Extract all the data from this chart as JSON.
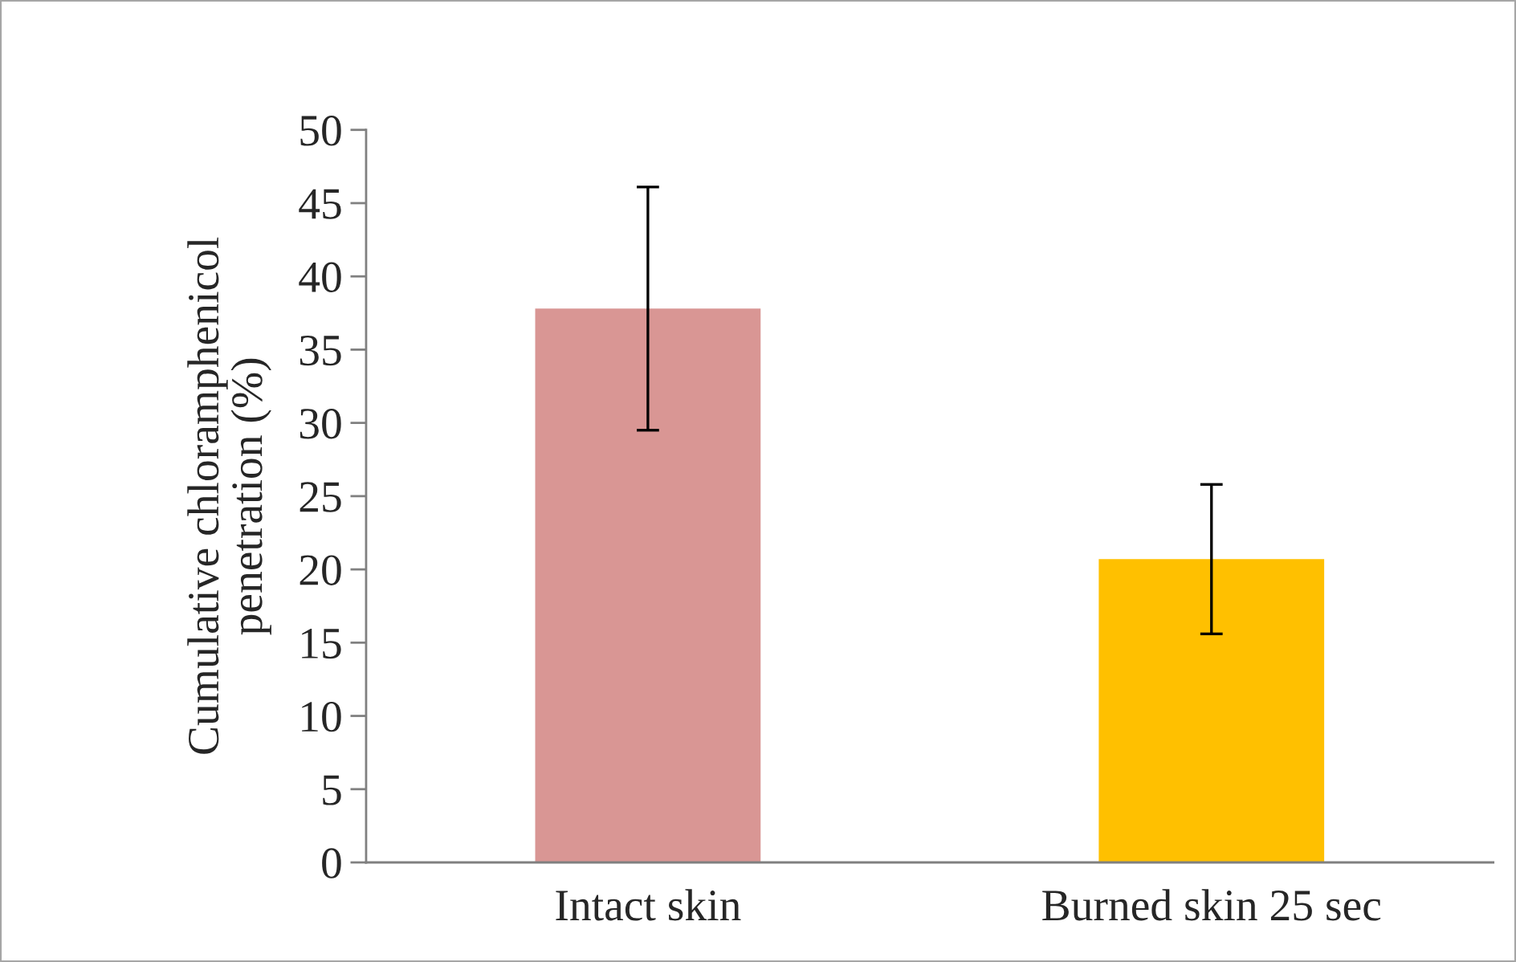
{
  "chart_data": {
    "type": "bar",
    "ylabel": "Cumulative chloramphenicol\npenetration (%)",
    "categories": [
      "Intact skin",
      "Burned skin 25 sec"
    ],
    "values": [
      37.8,
      20.7
    ],
    "errors": [
      8.3,
      5.1
    ],
    "colors": [
      "#d99694",
      "#ffc000"
    ],
    "ylim": [
      0,
      50
    ],
    "yticks": [
      0,
      5,
      10,
      15,
      20,
      25,
      30,
      35,
      40,
      45,
      50
    ],
    "grid": false,
    "legend": false
  }
}
